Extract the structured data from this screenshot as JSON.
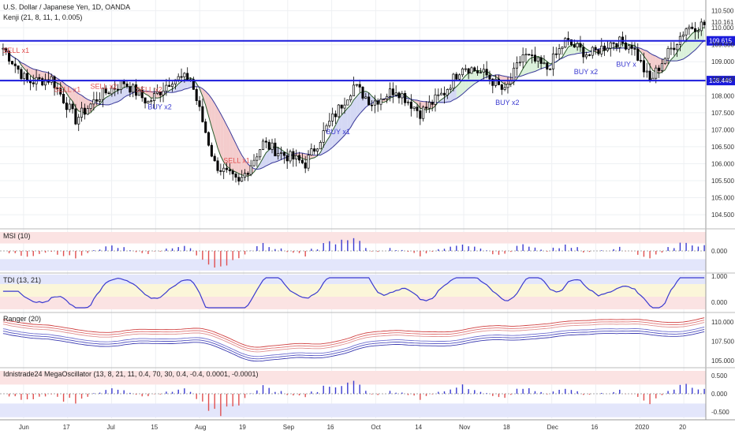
{
  "header": {
    "title": "U.S. Dollar / Japanese Yen, 1D, OANDA",
    "indicator": "Kenji (21, 8, 11, 1, 0.005)"
  },
  "price_levels": {
    "resistance": "109.615",
    "support": "108.446",
    "last": "110.161"
  },
  "colors": {
    "level_line": "#1a1adb",
    "bull": "#ffffff",
    "bear": "#000000",
    "sell": "#e05050",
    "buy": "#3a3ad0",
    "cloud_red": "#f3c6c6",
    "cloud_blue": "#cfd4f3",
    "cloud_green": "#d7efd7"
  },
  "signals": [
    {
      "label": "SELL x1",
      "side": "sell",
      "index": 3
    },
    {
      "label": "SELL x1",
      "side": "sell",
      "index": 20
    },
    {
      "label": "SELL x2",
      "side": "sell",
      "index": 32
    },
    {
      "label": "SELL x2",
      "side": "sell",
      "index": 47
    },
    {
      "label": "BUY x2",
      "side": "buy",
      "index": 51
    },
    {
      "label": "SELL x1",
      "side": "sell",
      "index": 76
    },
    {
      "label": "BUY x1",
      "side": "buy",
      "index": 110
    },
    {
      "label": "BUY x2",
      "side": "buy",
      "index": 166
    },
    {
      "label": "BUY x2",
      "side": "buy",
      "index": 192
    },
    {
      "label": "BUY x",
      "side": "buy",
      "index": 206
    }
  ],
  "panels": {
    "msi": {
      "title": "MSI (10)",
      "ticks": [
        "0.000"
      ]
    },
    "tdi": {
      "title": "TDI (13, 21)",
      "ticks": [
        "1.000",
        "0.000"
      ]
    },
    "ranger": {
      "title": "Ranger (20)",
      "ticks": [
        "110.000",
        "107.500",
        "105.000"
      ]
    },
    "mega": {
      "title": "Idnistrade24 MegaOscillator (13, 8, 21, 11, 0.4, 70, 30, 0.4, -0.4, 0.0001, -0.0001)",
      "ticks": [
        "0.500",
        "0.000",
        "-0.500"
      ]
    }
  },
  "chart_data": {
    "type": "candlestick",
    "y_ticks": [
      "110.500",
      "110.000",
      "109.500",
      "109.000",
      "108.500",
      "108.000",
      "107.500",
      "107.000",
      "106.500",
      "106.000",
      "105.500",
      "105.000",
      "104.500"
    ],
    "ylim": [
      104.2,
      110.7
    ],
    "x_labels": [
      "Jun",
      "17",
      "Jul",
      "15",
      "Aug",
      "19",
      "Sep",
      "16",
      "Oct",
      "14",
      "Nov",
      "18",
      "Dec",
      "16",
      "2020",
      "20"
    ],
    "anchors": [
      [
        0,
        109.4
      ],
      [
        8,
        108.4
      ],
      [
        16,
        108.5
      ],
      [
        24,
        107.3
      ],
      [
        32,
        108.0
      ],
      [
        40,
        108.4
      ],
      [
        48,
        107.8
      ],
      [
        56,
        108.5
      ],
      [
        62,
        108.5
      ],
      [
        70,
        106.0
      ],
      [
        78,
        105.4
      ],
      [
        86,
        106.6
      ],
      [
        92,
        106.3
      ],
      [
        100,
        106.0
      ],
      [
        108,
        107.2
      ],
      [
        116,
        108.3
      ],
      [
        122,
        107.8
      ],
      [
        130,
        108.2
      ],
      [
        138,
        107.5
      ],
      [
        146,
        108.1
      ],
      [
        152,
        108.9
      ],
      [
        160,
        108.6
      ],
      [
        166,
        108.1
      ],
      [
        172,
        109.2
      ],
      [
        180,
        108.8
      ],
      [
        186,
        109.6
      ],
      [
        194,
        109.2
      ],
      [
        202,
        109.6
      ],
      [
        208,
        109.5
      ],
      [
        214,
        108.4
      ],
      [
        218,
        109.0
      ],
      [
        222,
        109.5
      ],
      [
        226,
        110.0
      ],
      [
        232,
        110.1
      ]
    ],
    "count": 233
  }
}
